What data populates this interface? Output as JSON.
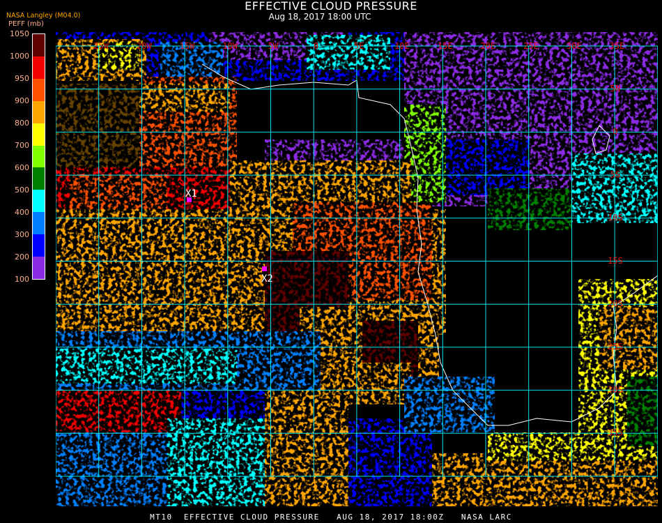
{
  "header": {
    "title": "EFFECTIVE CLOUD PRESSURE",
    "subtitle": "Aug 18, 2017 18:00 UTC",
    "source": "NASA Langley (M04.0)",
    "variable_units": "PEFF (mb)"
  },
  "legend": {
    "labels": [
      "1050",
      "1000",
      "950",
      "900",
      "800",
      "700",
      "600",
      "500",
      "400",
      "300",
      "200",
      "100"
    ],
    "colors": [
      "#600000",
      "#f00000",
      "#ff5000",
      "#ffa500",
      "#ffff00",
      "#80ff00",
      "#008000",
      "#00ffff",
      "#0080ff",
      "#0000ff",
      "#8a2be2"
    ]
  },
  "grid": {
    "line_color": "#00e5ee",
    "label_color": "#e01010",
    "longitude_labels": [
      "25W",
      "20W",
      "15W",
      "10W",
      "5W",
      "0",
      "5E",
      "10E",
      "15E",
      "20E",
      "25E",
      "30E",
      "35E"
    ],
    "latitude_labels": [
      "5N",
      "0",
      "5S",
      "10S",
      "15S",
      "20S",
      "25S",
      "30S",
      "35S"
    ]
  },
  "markers": [
    {
      "label": "X1",
      "color": "#ff00ff"
    },
    {
      "label": "X2",
      "color": "#ff00ff"
    }
  ],
  "footer": "MT10  EFFECTIVE CLOUD PRESSURE   AUG 18, 2017 18:00Z   NASA LARC"
}
